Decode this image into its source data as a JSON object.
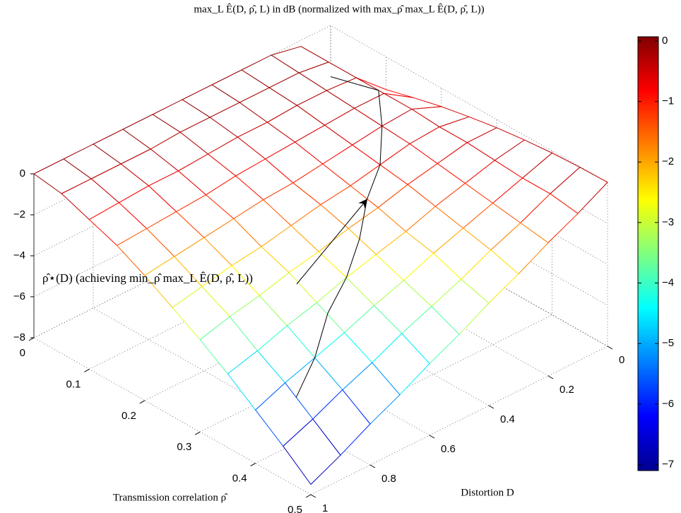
{
  "chart_data": {
    "type": "surface",
    "title": "max_L Ê(D, ρ̂, L) in dB (normalized with max_ρ̂ max_L Ê(D, ρ̂, L))",
    "x_label": "Transmission correlation ρ̂",
    "y_label": "Distortion D",
    "annotation": "ρ̂⋆(D) (achieving min_ρ̂ max_L Ê(D, ρ̂, L))",
    "x": [
      0,
      0.05,
      0.1,
      0.15,
      0.2,
      0.25,
      0.3,
      0.35,
      0.4,
      0.45,
      0.5
    ],
    "y": [
      0,
      0.1,
      0.2,
      0.3,
      0.4,
      0.5,
      0.6,
      0.7,
      0.8,
      0.9,
      1
    ],
    "z": [
      [
        -2.5,
        -2.03,
        -1.6,
        -1.23,
        -0.9,
        -0.63,
        -0.4,
        -0.23,
        -0.1,
        -0.03,
        0
      ],
      [
        -0.3,
        -0.3,
        -0.3,
        -0.3,
        -0.3,
        -0.4,
        -0.4,
        -0.5,
        -0.6,
        -0.6,
        -0.8
      ],
      [
        0,
        -0.1,
        -0.2,
        -0.3,
        -0.4,
        -0.5,
        -0.7,
        -0.9,
        -1.1,
        -1.3,
        -1.5
      ],
      [
        0,
        -0.1,
        -0.2,
        -0.4,
        -0.6,
        -0.8,
        -1.0,
        -1.3,
        -1.6,
        -1.9,
        -2.3
      ],
      [
        0,
        -0.1,
        -0.3,
        -0.5,
        -0.8,
        -1.1,
        -1.4,
        -1.8,
        -2.1,
        -2.6,
        -3.0
      ],
      [
        0,
        -0.1,
        -0.3,
        -0.6,
        -1.0,
        -1.3,
        -1.7,
        -2.2,
        -2.7,
        -3.2,
        -3.8
      ],
      [
        0,
        -0.1,
        -0.4,
        -0.7,
        -1.1,
        -1.6,
        -2.1,
        -2.6,
        -3.2,
        -3.8,
        -4.5
      ],
      [
        0,
        -0.2,
        -0.5,
        -0.9,
        -1.3,
        -1.9,
        -2.4,
        -3.1,
        -3.8,
        -4.5,
        -5.3
      ],
      [
        0,
        -0.2,
        -0.5,
        -1.0,
        -1.5,
        -2.1,
        -2.8,
        -3.5,
        -4.3,
        -5.1,
        -6.0
      ],
      [
        0,
        -0.2,
        -0.6,
        -1.1,
        -1.7,
        -2.4,
        -3.1,
        -4.0,
        -4.8,
        -5.8,
        -6.8
      ],
      [
        0,
        -0.2,
        -0.7,
        -1.2,
        -1.9,
        -2.7,
        -3.5,
        -4.4,
        -5.4,
        -6.4,
        -7.5
      ]
    ],
    "optimal_curve": {
      "y": [
        0,
        0.1,
        0.2,
        0.3,
        0.4,
        0.5,
        0.6,
        0.7,
        0.8,
        0.9
      ],
      "x": [
        0,
        0.14,
        0.2,
        0.25,
        0.28,
        0.32,
        0.35,
        0.37,
        0.4,
        0.42
      ],
      "z": [
        -2.5,
        -0.3,
        -0.4,
        -0.8,
        -1.3,
        -1.9,
        -2.6,
        -3.3,
        -4.3,
        -5.2
      ]
    },
    "xlim": [
      0,
      0.5
    ],
    "xticks": [
      0,
      0.1,
      0.2,
      0.3,
      0.4,
      0.5
    ],
    "ylim": [
      0,
      1
    ],
    "yticks": [
      0,
      0.2,
      0.4,
      0.6,
      0.8,
      1
    ],
    "zlim": [
      -8,
      0
    ],
    "zticks": [
      {
        "value": -8,
        "label": "−8"
      },
      {
        "value": -6,
        "label": "−6"
      },
      {
        "value": -4,
        "label": "−4"
      },
      {
        "value": -2,
        "label": "−2"
      },
      0
    ],
    "clim": [
      -7.1,
      0.07
    ],
    "colorbar_ticks": [
      0,
      {
        "value": -1,
        "label": "−1"
      },
      {
        "value": -2,
        "label": "−2"
      },
      {
        "value": -3,
        "label": "−3"
      },
      {
        "value": -4,
        "label": "−4"
      },
      {
        "value": -5,
        "label": "−5"
      },
      {
        "value": -6,
        "label": "−6"
      },
      {
        "value": -7,
        "label": "−7"
      }
    ],
    "colormap": "jet",
    "grid": true
  }
}
